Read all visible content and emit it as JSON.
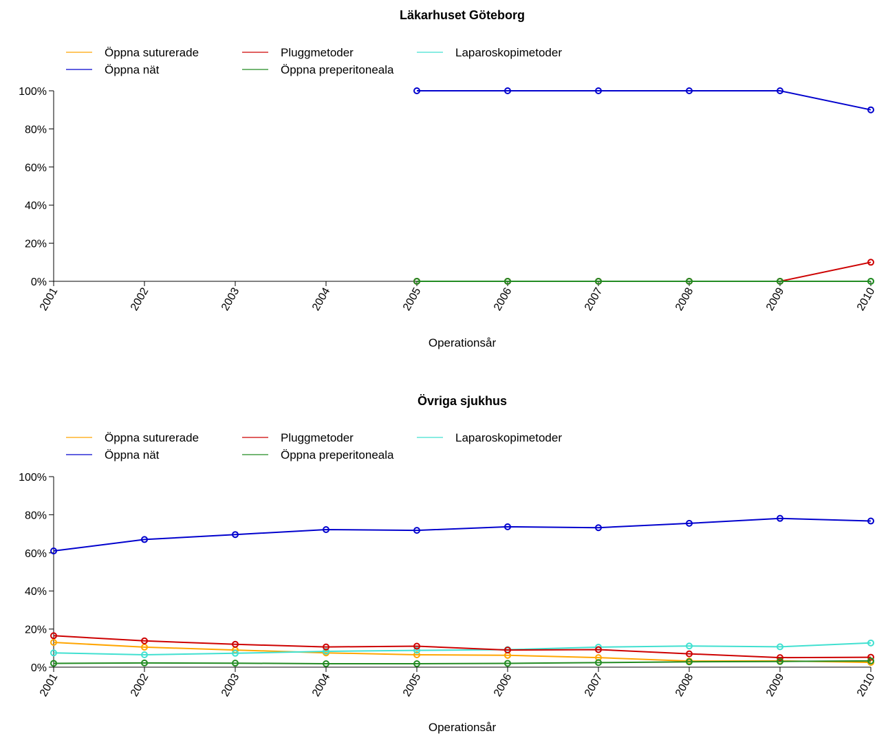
{
  "chart_data": [
    {
      "type": "line",
      "title": "Läkarhuset Göteborg",
      "xlabel": "Operationsår",
      "ylabel": "",
      "ylim": [
        0,
        100
      ],
      "yticks": [
        "0%",
        "20%",
        "40%",
        "60%",
        "80%",
        "100%"
      ],
      "categories": [
        "2001",
        "2002",
        "2003",
        "2004",
        "2005",
        "2006",
        "2007",
        "2008",
        "2009",
        "2010"
      ],
      "legend_position": "top-left",
      "series": [
        {
          "name": "Öppna suturerade",
          "color": "#FFA500",
          "values": [
            null,
            null,
            null,
            null,
            0,
            0,
            0,
            0,
            0,
            0
          ]
        },
        {
          "name": "Öppna nät",
          "color": "#0000CD",
          "values": [
            null,
            null,
            null,
            null,
            100,
            100,
            100,
            100,
            100,
            90
          ]
        },
        {
          "name": "Pluggmetoder",
          "color": "#CD0000",
          "values": [
            null,
            null,
            null,
            null,
            0,
            0,
            0,
            0,
            0,
            10
          ]
        },
        {
          "name": "Öppna preperitoneala",
          "color": "#228B22",
          "values": [
            null,
            null,
            null,
            null,
            0,
            0,
            0,
            0,
            0,
            0
          ]
        },
        {
          "name": "Laparoskopimetoder",
          "color": "#40E0D0",
          "values": [
            null,
            null,
            null,
            null,
            0,
            0,
            0,
            0,
            0,
            0
          ]
        }
      ]
    },
    {
      "type": "line",
      "title": "Övriga sjukhus",
      "xlabel": "Operationsår",
      "ylabel": "",
      "ylim": [
        0,
        100
      ],
      "yticks": [
        "0%",
        "20%",
        "40%",
        "60%",
        "80%",
        "100%"
      ],
      "categories": [
        "2001",
        "2002",
        "2003",
        "2004",
        "2005",
        "2006",
        "2007",
        "2008",
        "2009",
        "2010"
      ],
      "legend_position": "top-left",
      "series": [
        {
          "name": "Öppna suturerade",
          "color": "#FFA500",
          "values": [
            13,
            10.5,
            9,
            7.5,
            6.5,
            6.2,
            5,
            3.2,
            3.3,
            2.5
          ]
        },
        {
          "name": "Öppna nät",
          "color": "#0000CD",
          "values": [
            61,
            67,
            69.6,
            72.2,
            71.8,
            73.7,
            73.2,
            75.5,
            78.1,
            76.7
          ]
        },
        {
          "name": "Pluggmetoder",
          "color": "#CD0000",
          "values": [
            16.5,
            13.8,
            12,
            10.6,
            11,
            9,
            9.2,
            7,
            5,
            5.2
          ]
        },
        {
          "name": "Öppna preperitoneala",
          "color": "#228B22",
          "values": [
            2,
            2.2,
            2.1,
            1.8,
            1.8,
            2,
            2.4,
            2.8,
            3,
            3.3
          ]
        },
        {
          "name": "Laparoskopimetoder",
          "color": "#40E0D0",
          "values": [
            7.5,
            6.5,
            7.3,
            8.3,
            8.8,
            9.2,
            10.5,
            11.1,
            10.7,
            12.7
          ]
        }
      ]
    }
  ]
}
